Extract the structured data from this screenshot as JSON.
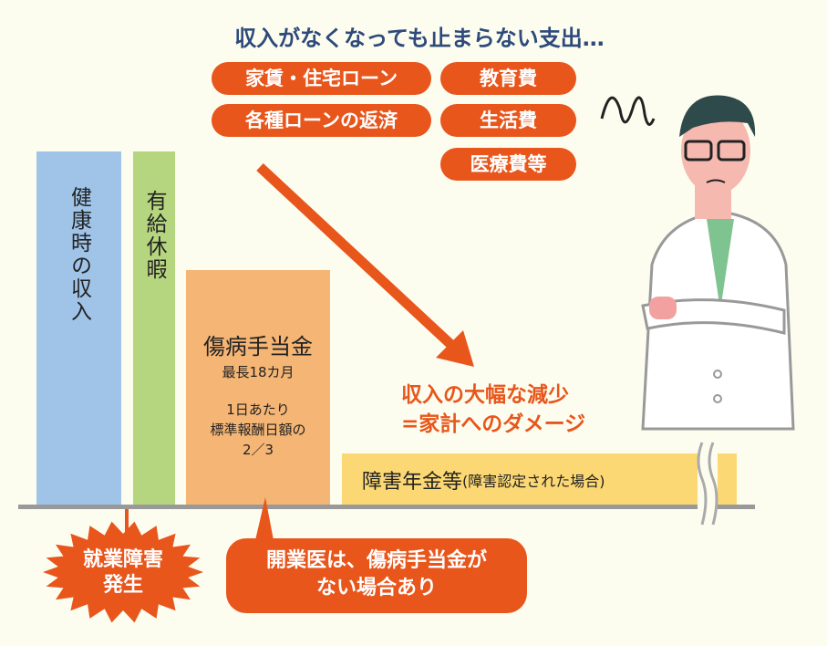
{
  "title": "収入がなくなっても止まらない支出…",
  "expenses": [
    "家賃・住宅ローン",
    "教育費",
    "各種ローンの返済",
    "生活費",
    "医療費等"
  ],
  "bars": {
    "healthy_income": "健康時の収入",
    "paid_leave": "有給休暇",
    "sickness_allowance": {
      "title": "傷病手当金",
      "duration": "最長18カ月",
      "line1": "1日あたり",
      "line2": "標準報酬日額の",
      "ratio": "2／3"
    },
    "disability_pension": {
      "title": "障害年金等",
      "note": "(障害認定された場合)"
    }
  },
  "damage": {
    "line1": "収入の大幅な減少",
    "line2": "=家計へのダメージ"
  },
  "event_burst": {
    "line1": "就業障害",
    "line2": "発生"
  },
  "callout": {
    "line1": "開業医は、傷病手当金が",
    "line2": "ない場合あり"
  },
  "colors": {
    "accent": "#e8561c",
    "title": "#2d4a7a",
    "blue": "#9fc4e8",
    "green": "#b5d67f",
    "orange": "#f5b574",
    "yellow": "#fcd874",
    "background": "#fdfdef"
  },
  "icons": [
    "worried-doctor-illustration",
    "down-arrow-icon",
    "break-mark-icon",
    "starburst-icon"
  ]
}
